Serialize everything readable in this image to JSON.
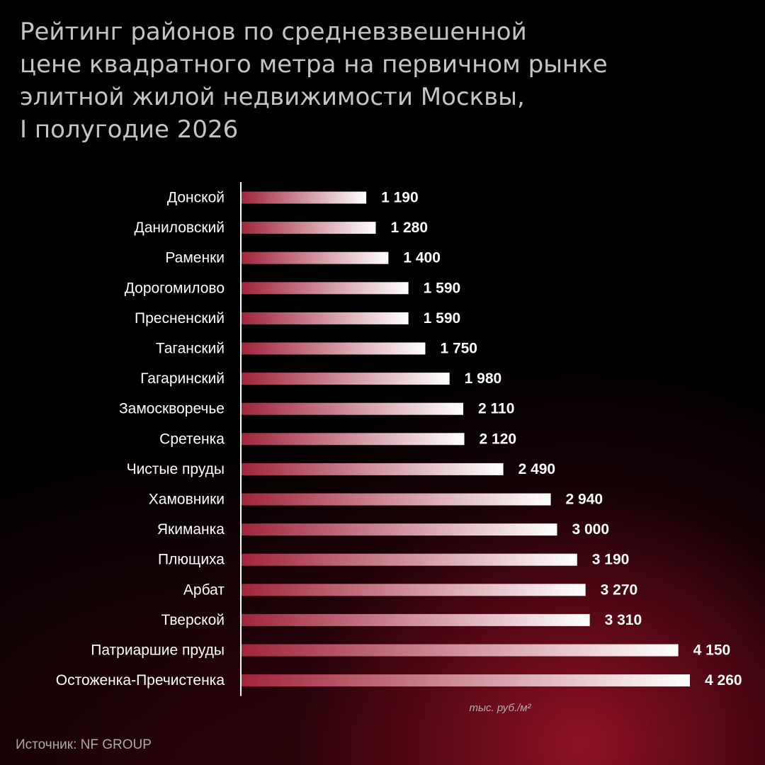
{
  "title_lines": [
    "Рейтинг районов по средневзвешенной",
    "цене квадратного метра на первичном рынке",
    "элитной жилой недвижимости Москвы,",
    "I полугодие 2026"
  ],
  "source": "Источник: NF GROUP",
  "colors": {
    "background": "#000000",
    "glow": "#8e1222",
    "bar_start": "#a0243a",
    "bar_end": "#ffffff",
    "title_text": "#c4c4c4",
    "label_text": "#ffffff",
    "axis_line": "#ffffff"
  },
  "chart_data": {
    "type": "bar",
    "orientation": "horizontal",
    "title": "Рейтинг районов по средневзвешенной цене квадратного метра на первичном рынке элитной жилой недвижимости Москвы, I полугодие 2026",
    "categories": [
      "Донской",
      "Даниловский",
      "Раменки",
      "Дорогомилово",
      "Пресненский",
      "Таганский",
      "Гагаринский",
      "Замоскворечье",
      "Сретенка",
      "Чистые пруды",
      "Хамовники",
      "Якиманка",
      "Плющиха",
      "Арбат",
      "Тверской",
      "Патриаршие пруды",
      "Остоженка-Пречистенка"
    ],
    "values": [
      1190,
      1280,
      1400,
      1590,
      1590,
      1750,
      1980,
      2110,
      2120,
      2490,
      2940,
      3000,
      3190,
      3270,
      3310,
      4150,
      4260
    ],
    "value_labels": [
      "1 190",
      "1 280",
      "1 400",
      "1 590",
      "1 590",
      "1 750",
      "1 980",
      "2 110",
      "2 120",
      "2 490",
      "2 940",
      "3 000",
      "3 190",
      "3 270",
      "3 310",
      "4 150",
      "4 260"
    ],
    "unit": "тыс. руб./м²",
    "xlim": [
      0,
      4260
    ],
    "grid": false,
    "legend": "none"
  }
}
